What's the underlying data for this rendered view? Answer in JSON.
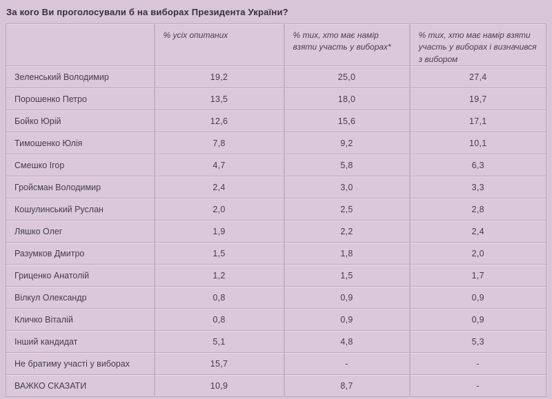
{
  "colors": {
    "page_background": "#d8c5d8",
    "cell_background": "#dbc9db",
    "grid_line": "#c6b1c6",
    "title_text": "#362f3c",
    "body_text": "#463b49"
  },
  "chart_data": {
    "type": "table",
    "title": "За кого Ви проголосували б на виборах Президента України?",
    "columns": [
      "",
      "% усіх опитаних",
      "% тих, хто має намір взяти участь у виборах*",
      "% тих, хто має намір взяти участь у виборах і визначився з вибором"
    ],
    "decimal_separator": ",",
    "rows": [
      {
        "name": "Зеленський Володимир",
        "values": [
          "19,2",
          "25,0",
          "27,4"
        ]
      },
      {
        "name": "Порошенко Петро",
        "values": [
          "13,5",
          "18,0",
          "19,7"
        ]
      },
      {
        "name": "Бойко Юрій",
        "values": [
          "12,6",
          "15,6",
          "17,1"
        ]
      },
      {
        "name": "Тимошенко Юлія",
        "values": [
          "7,8",
          "9,2",
          "10,1"
        ]
      },
      {
        "name": "Смешко Ігор",
        "values": [
          "4,7",
          "5,8",
          "6,3"
        ]
      },
      {
        "name": "Гройсман Володимир",
        "values": [
          "2,4",
          "3,0",
          "3,3"
        ]
      },
      {
        "name": "Кошулинський Руслан",
        "values": [
          "2,0",
          "2,5",
          "2,8"
        ]
      },
      {
        "name": "Ляшко Олег",
        "values": [
          "1,9",
          "2,2",
          "2,4"
        ]
      },
      {
        "name": "Разумков Дмитро",
        "values": [
          "1,5",
          "1,8",
          "2,0"
        ]
      },
      {
        "name": "Гриценко Анатолій",
        "values": [
          "1,2",
          "1,5",
          "1,7"
        ]
      },
      {
        "name": "Вілкул Олександр",
        "values": [
          "0,8",
          "0,9",
          "0,9"
        ]
      },
      {
        "name": "Кличко Віталій",
        "values": [
          "0,8",
          "0,9",
          "0,9"
        ]
      },
      {
        "name": "Інший кандидат",
        "values": [
          "5,1",
          "4,8",
          "5,3"
        ]
      },
      {
        "name": "Не братиму участі у виборах",
        "values": [
          "15,7",
          "-",
          "-"
        ]
      },
      {
        "name": "ВАЖКО СКАЗАТИ",
        "values": [
          "10,9",
          "8,7",
          "-"
        ]
      }
    ]
  }
}
